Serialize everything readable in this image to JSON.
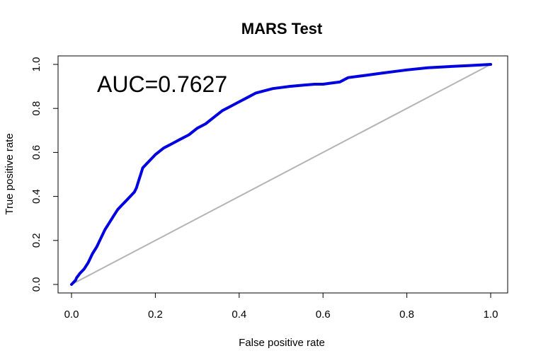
{
  "chart_data": {
    "type": "line",
    "title": "MARS Test",
    "xlabel": "False positive rate",
    "ylabel": "True positive rate",
    "xlim": [
      0,
      1
    ],
    "ylim": [
      0,
      1
    ],
    "x_ticks": [
      "0.0",
      "0.2",
      "0.4",
      "0.6",
      "0.8",
      "1.0"
    ],
    "y_ticks": [
      "0.0",
      "0.2",
      "0.4",
      "0.6",
      "0.8",
      "1.0"
    ],
    "grid": false,
    "legend": "none",
    "annotation": "AUC=0.7627",
    "series": [
      {
        "color": "#0000e0",
        "x": [
          0.0,
          0.005,
          0.01,
          0.012,
          0.02,
          0.03,
          0.04,
          0.05,
          0.06,
          0.07,
          0.08,
          0.09,
          0.1,
          0.11,
          0.12,
          0.13,
          0.14,
          0.15,
          0.155,
          0.16,
          0.165,
          0.17,
          0.18,
          0.19,
          0.2,
          0.22,
          0.24,
          0.26,
          0.28,
          0.3,
          0.32,
          0.34,
          0.36,
          0.38,
          0.4,
          0.42,
          0.44,
          0.46,
          0.48,
          0.5,
          0.52,
          0.55,
          0.58,
          0.6,
          0.62,
          0.64,
          0.66,
          0.7,
          0.74,
          0.78,
          0.8,
          0.85,
          0.9,
          0.95,
          1.0
        ],
        "y": [
          0.0,
          0.01,
          0.02,
          0.03,
          0.05,
          0.07,
          0.1,
          0.14,
          0.17,
          0.21,
          0.25,
          0.28,
          0.31,
          0.34,
          0.36,
          0.38,
          0.4,
          0.42,
          0.44,
          0.47,
          0.5,
          0.53,
          0.55,
          0.57,
          0.59,
          0.62,
          0.64,
          0.66,
          0.68,
          0.71,
          0.73,
          0.76,
          0.79,
          0.81,
          0.83,
          0.85,
          0.87,
          0.88,
          0.89,
          0.895,
          0.9,
          0.905,
          0.91,
          0.91,
          0.915,
          0.92,
          0.94,
          0.95,
          0.96,
          0.97,
          0.975,
          0.985,
          0.99,
          0.995,
          1.0
        ]
      },
      {
        "color": "#b4b4b4",
        "x": [
          0,
          1
        ],
        "y": [
          0,
          1
        ]
      }
    ]
  }
}
